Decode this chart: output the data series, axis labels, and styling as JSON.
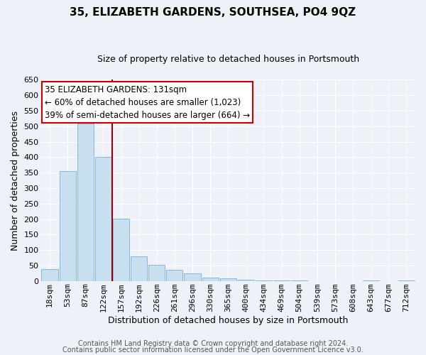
{
  "title": "35, ELIZABETH GARDENS, SOUTHSEA, PO4 9QZ",
  "subtitle": "Size of property relative to detached houses in Portsmouth",
  "xlabel": "Distribution of detached houses by size in Portsmouth",
  "ylabel": "Number of detached properties",
  "bar_color": "#c8dff0",
  "bar_edge_color": "#7ab0d4",
  "categories": [
    "18sqm",
    "53sqm",
    "87sqm",
    "122sqm",
    "157sqm",
    "192sqm",
    "226sqm",
    "261sqm",
    "296sqm",
    "330sqm",
    "365sqm",
    "400sqm",
    "434sqm",
    "469sqm",
    "504sqm",
    "539sqm",
    "573sqm",
    "608sqm",
    "643sqm",
    "677sqm",
    "712sqm"
  ],
  "values": [
    38,
    355,
    508,
    400,
    202,
    80,
    53,
    35,
    24,
    10,
    8,
    3,
    2,
    1,
    1,
    0,
    0,
    0,
    1,
    0,
    1
  ],
  "ylim": [
    0,
    650
  ],
  "yticks": [
    0,
    50,
    100,
    150,
    200,
    250,
    300,
    350,
    400,
    450,
    500,
    550,
    600,
    650
  ],
  "red_line_x": 3.5,
  "annotation_text_line1": "35 ELIZABETH GARDENS: 131sqm",
  "annotation_text_line2": "← 60% of detached houses are smaller (1,023)",
  "annotation_text_line3": "39% of semi-detached houses are larger (664) →",
  "footnote1": "Contains HM Land Registry data © Crown copyright and database right 2024.",
  "footnote2": "Contains public sector information licensed under the Open Government Licence v3.0.",
  "background_color": "#eef2f8",
  "plot_background": "#eef2f8",
  "grid_color": "#ffffff",
  "title_fontsize": 11,
  "subtitle_fontsize": 9,
  "ylabel_fontsize": 9,
  "xlabel_fontsize": 9,
  "tick_fontsize": 8,
  "annot_fontsize": 8.5,
  "footnote_fontsize": 7
}
